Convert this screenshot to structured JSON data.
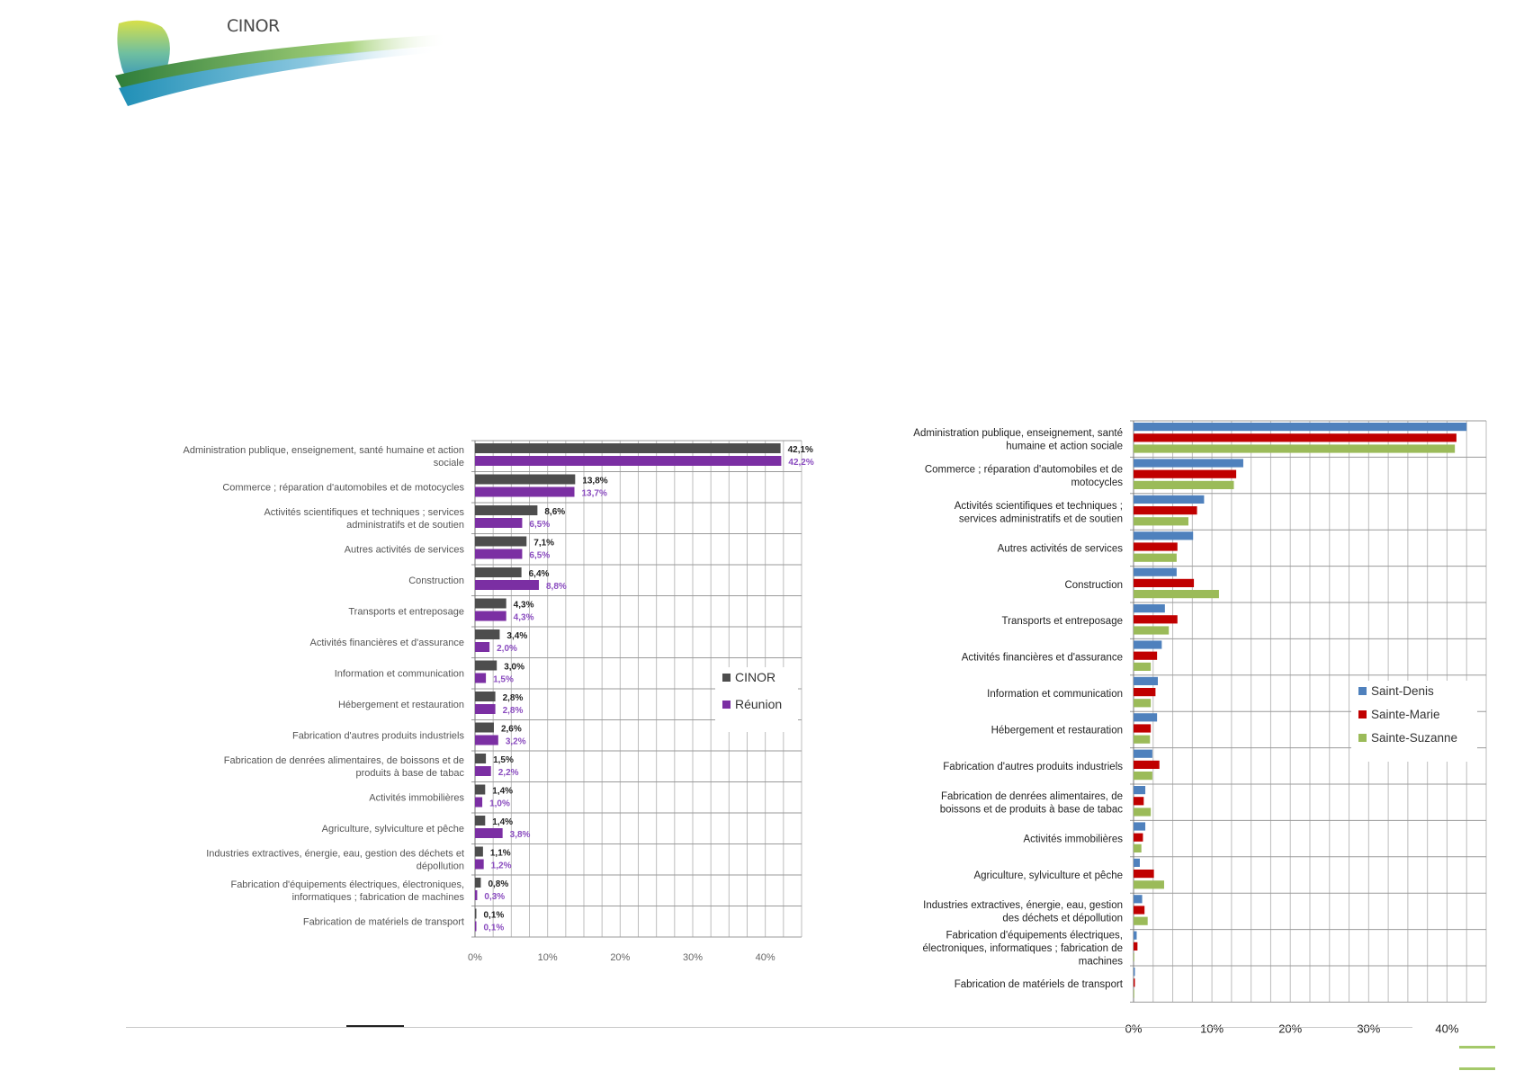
{
  "logo": {
    "text": "CINOR"
  },
  "chart_data": [
    {
      "type": "bar",
      "orientation": "horizontal",
      "categories": [
        "Administration publique, enseignement, santé humaine et action sociale",
        "Commerce ; réparation d'automobiles et de motocycles",
        "Activités scientifiques et techniques ; services administratifs et de soutien",
        "Autres activités de services",
        "Construction",
        "Transports et entreposage",
        "Activités financières et d'assurance",
        "Information et communication",
        "Hébergement et restauration",
        "Fabrication d'autres produits industriels",
        "Fabrication de denrées alimentaires, de boissons et  de produits à base de tabac",
        "Activités immobilières",
        "Agriculture, sylviculture et pêche",
        "Industries extractives,  énergie, eau, gestion des déchets et dépollution",
        "Fabrication d'équipements électriques, électroniques, informatiques ; fabrication de machines",
        "Fabrication de matériels de transport"
      ],
      "series": [
        {
          "name": "CINOR",
          "values": [
            42.1,
            13.8,
            8.6,
            7.1,
            6.4,
            4.3,
            3.4,
            3.0,
            2.8,
            2.6,
            1.5,
            1.4,
            1.4,
            1.1,
            0.8,
            0.1
          ],
          "labels": [
            "42,1%",
            "13,8%",
            "8,6%",
            "7,1%",
            "6,4%",
            "4,3%",
            "3,4%",
            "3,0%",
            "2,8%",
            "2,6%",
            "1,5%",
            "1,4%",
            "1,4%",
            "1,1%",
            "0,8%",
            "0,1%"
          ]
        },
        {
          "name": "Réunion",
          "values": [
            42.2,
            13.7,
            6.5,
            6.5,
            8.8,
            4.3,
            2.0,
            1.5,
            2.8,
            3.2,
            2.2,
            1.0,
            3.8,
            1.2,
            0.3,
            0.1
          ],
          "labels": [
            "42,2%",
            "13,7%",
            "6,5%",
            "6,5%",
            "8,8%",
            "4,3%",
            "2,0%",
            "1,5%",
            "2,8%",
            "3,2%",
            "2,2%",
            "1,0%",
            "3,8%",
            "1,2%",
            "0,3%",
            "0,1%"
          ]
        }
      ],
      "x_ticks": [
        "0%",
        "10%",
        "20%",
        "30%",
        "40%"
      ],
      "xlim": [
        0,
        45
      ],
      "legend": "right",
      "colors": {
        "CINOR": "#4d4d4d",
        "Réunion": "#7b2fa3",
        "Réunion_label": "#8a4cbf"
      }
    },
    {
      "type": "bar",
      "orientation": "horizontal",
      "categories": [
        "Administration publique, enseignement, santé humaine et action sociale",
        "Commerce ; réparation d'automobiles et de motocycles",
        "Activités scientifiques et techniques ; services administratifs et de soutien",
        "Autres activités de services",
        "Construction",
        "Transports et entreposage",
        "Activités financières et d'assurance",
        "Information et communication",
        "Hébergement et restauration",
        "Fabrication d'autres produits industriels",
        "Fabrication de denrées alimentaires, de boissons et  de produits à base de tabac",
        "Activités immobilières",
        "Agriculture, sylviculture et pêche",
        "Industries extractives,  énergie, eau, gestion des déchets et dépollution",
        "Fabrication d'équipements électriques, électroniques, informatiques ; fabrication de machines",
        "Fabrication de matériels de transport"
      ],
      "series": [
        {
          "name": "Saint-Denis",
          "values": [
            42.5,
            14.0,
            9.0,
            7.6,
            5.5,
            4.0,
            3.6,
            3.1,
            3.0,
            2.4,
            1.5,
            1.5,
            0.8,
            1.1,
            0.4,
            0.1
          ]
        },
        {
          "name": "Sainte-Marie",
          "values": [
            41.2,
            13.1,
            8.1,
            5.6,
            7.7,
            5.6,
            3.0,
            2.8,
            2.2,
            3.3,
            1.3,
            1.2,
            2.6,
            1.4,
            0.5,
            0.1
          ]
        },
        {
          "name": "Sainte-Suzanne",
          "values": [
            41.0,
            12.8,
            7.0,
            5.5,
            10.9,
            4.5,
            2.2,
            2.2,
            2.1,
            2.4,
            2.2,
            1.0,
            3.9,
            1.8,
            0.0,
            0.0
          ]
        }
      ],
      "x_ticks": [
        "0%",
        "10%",
        "20%",
        "30%",
        "40%"
      ],
      "xlim": [
        0,
        45
      ],
      "legend": "right",
      "colors": {
        "Saint-Denis": "#4f81bd",
        "Sainte-Marie": "#c00000",
        "Sainte-Suzanne": "#9bbb59"
      }
    }
  ]
}
